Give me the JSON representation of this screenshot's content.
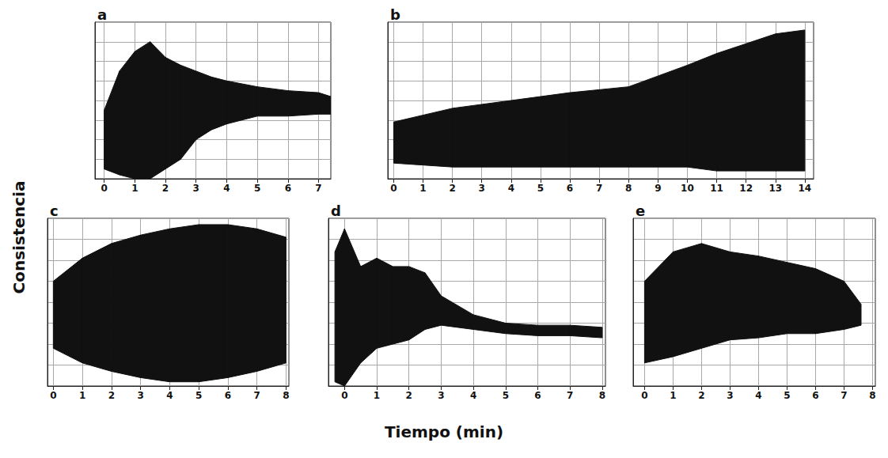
{
  "x_label": "Tiempo (min)",
  "y_label": "Consistencia",
  "chart_data": [
    {
      "type": "area",
      "title": "a",
      "color": "#111111",
      "grid": true,
      "tick_labels": "x",
      "xlim": [
        -0.3,
        7.4
      ],
      "xticks": [
        0,
        1,
        2,
        3,
        4,
        5,
        6,
        7
      ],
      "ylim": [
        0,
        80
      ],
      "yticks": [
        0,
        10,
        20,
        30,
        40,
        50,
        60,
        70,
        80
      ],
      "x": [
        0,
        0.5,
        1,
        1.5,
        2,
        2.5,
        3,
        3.5,
        4,
        5,
        6,
        7,
        7.4
      ],
      "high": [
        35,
        55,
        65,
        70,
        62,
        58,
        55,
        52,
        50,
        47,
        45,
        44,
        42
      ],
      "low": [
        5,
        2,
        0,
        0,
        5,
        10,
        20,
        25,
        28,
        32,
        32,
        33,
        33
      ]
    },
    {
      "type": "area",
      "title": "b",
      "color": "#111111",
      "grid": true,
      "tick_labels": "x",
      "xlim": [
        -0.2,
        14.3
      ],
      "xticks": [
        0,
        1,
        2,
        3,
        4,
        5,
        6,
        7,
        8,
        9,
        10,
        11,
        12,
        13,
        14
      ],
      "ylim": [
        0,
        80
      ],
      "yticks": [
        0,
        10,
        20,
        30,
        40,
        50,
        60,
        70,
        80
      ],
      "x": [
        0,
        2,
        4,
        6,
        8,
        10,
        11,
        12,
        13,
        14
      ],
      "high": [
        29,
        36,
        40,
        44,
        47,
        58,
        64,
        69,
        74,
        76
      ],
      "low": [
        8,
        6,
        6,
        6,
        6,
        6,
        4,
        4,
        4,
        4
      ]
    },
    {
      "type": "area",
      "title": "c",
      "color": "#111111",
      "grid": true,
      "tick_labels": "x",
      "xlim": [
        -0.2,
        8.1
      ],
      "xticks": [
        0,
        1,
        2,
        3,
        4,
        5,
        6,
        7,
        8
      ],
      "ylim": [
        0,
        80
      ],
      "yticks": [
        0,
        10,
        20,
        30,
        40,
        50,
        60,
        70,
        80
      ],
      "x": [
        0,
        1,
        2,
        3,
        4,
        5,
        6,
        7,
        8
      ],
      "high": [
        50,
        61,
        68,
        72,
        75,
        77,
        77,
        75,
        71
      ],
      "low": [
        18,
        11,
        7,
        4,
        2,
        2,
        4,
        7,
        11
      ]
    },
    {
      "type": "area",
      "title": "d",
      "color": "#111111",
      "grid": true,
      "tick_labels": "x",
      "xlim": [
        -0.5,
        8.1
      ],
      "xticks": [
        0,
        1,
        2,
        3,
        4,
        5,
        6,
        7,
        8
      ],
      "ylim": [
        0,
        80
      ],
      "yticks": [
        0,
        10,
        20,
        30,
        40,
        50,
        60,
        70,
        80
      ],
      "x": [
        -0.3,
        0,
        0.5,
        1,
        1.5,
        2,
        2.5,
        3,
        4,
        5,
        6,
        7,
        8
      ],
      "high": [
        64,
        75,
        57,
        61,
        57,
        57,
        54,
        43,
        34,
        30,
        29,
        29,
        28
      ],
      "low": [
        2,
        0,
        11,
        18,
        20,
        22,
        27,
        29,
        27,
        25,
        24,
        24,
        23
      ]
    },
    {
      "type": "area",
      "title": "e",
      "color": "#111111",
      "grid": true,
      "tick_labels": "x",
      "xlim": [
        -0.4,
        8.1
      ],
      "xticks": [
        0,
        1,
        2,
        3,
        4,
        5,
        6,
        7,
        8
      ],
      "ylim": [
        0,
        80
      ],
      "yticks": [
        0,
        10,
        20,
        30,
        40,
        50,
        60,
        70,
        80
      ],
      "x": [
        0,
        1,
        2,
        3,
        4,
        5,
        6,
        7,
        7.6
      ],
      "high": [
        50,
        64,
        68,
        64,
        62,
        59,
        56,
        50,
        39
      ],
      "low": [
        11,
        14,
        18,
        22,
        23,
        25,
        25,
        27,
        29
      ]
    }
  ]
}
